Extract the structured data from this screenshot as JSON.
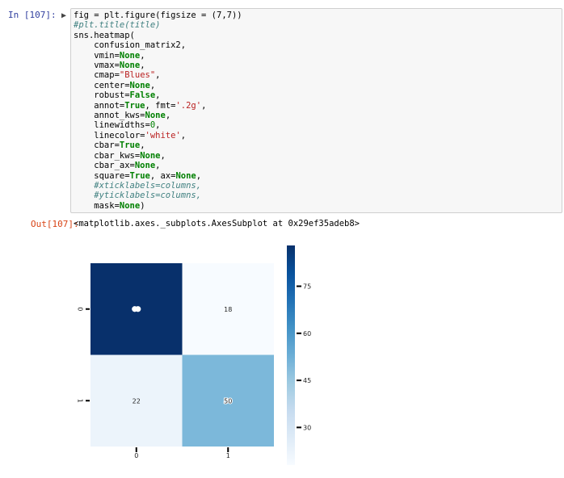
{
  "input_prompt": "In [107]:",
  "output_prompt": "Out[107]:",
  "code_lines": [
    [
      {
        "t": "fig = plt.figure(figsize = (7,7))",
        "c": ""
      }
    ],
    [
      {
        "t": "#plt.title(title)",
        "c": "cm"
      }
    ],
    [
      {
        "t": "sns.heatmap(",
        "c": ""
      }
    ],
    [
      {
        "t": "    confusion_matrix2,",
        "c": ""
      }
    ],
    [
      {
        "t": "    vmin=",
        "c": ""
      },
      {
        "t": "None",
        "c": "kw"
      },
      {
        "t": ",",
        "c": ""
      }
    ],
    [
      {
        "t": "    vmax=",
        "c": ""
      },
      {
        "t": "None",
        "c": "kw"
      },
      {
        "t": ",",
        "c": ""
      }
    ],
    [
      {
        "t": "    cmap=",
        "c": ""
      },
      {
        "t": "\"Blues\"",
        "c": "str"
      },
      {
        "t": ",",
        "c": ""
      }
    ],
    [
      {
        "t": "    center=",
        "c": ""
      },
      {
        "t": "None",
        "c": "kw"
      },
      {
        "t": ",",
        "c": ""
      }
    ],
    [
      {
        "t": "    robust=",
        "c": ""
      },
      {
        "t": "False",
        "c": "kw"
      },
      {
        "t": ",",
        "c": ""
      }
    ],
    [
      {
        "t": "    annot=",
        "c": ""
      },
      {
        "t": "True",
        "c": "kw"
      },
      {
        "t": ", fmt=",
        "c": ""
      },
      {
        "t": "'.2g'",
        "c": "str"
      },
      {
        "t": ",",
        "c": ""
      }
    ],
    [
      {
        "t": "    annot_kws=",
        "c": ""
      },
      {
        "t": "None",
        "c": "kw"
      },
      {
        "t": ",",
        "c": ""
      }
    ],
    [
      {
        "t": "    linewidths=",
        "c": ""
      },
      {
        "t": "0",
        "c": "num"
      },
      {
        "t": ",",
        "c": ""
      }
    ],
    [
      {
        "t": "    linecolor=",
        "c": ""
      },
      {
        "t": "'white'",
        "c": "str"
      },
      {
        "t": ",",
        "c": ""
      }
    ],
    [
      {
        "t": "    cbar=",
        "c": ""
      },
      {
        "t": "True",
        "c": "kw"
      },
      {
        "t": ",",
        "c": ""
      }
    ],
    [
      {
        "t": "    cbar_kws=",
        "c": ""
      },
      {
        "t": "None",
        "c": "kw"
      },
      {
        "t": ",",
        "c": ""
      }
    ],
    [
      {
        "t": "    cbar_ax=",
        "c": ""
      },
      {
        "t": "None",
        "c": "kw"
      },
      {
        "t": ",",
        "c": ""
      }
    ],
    [
      {
        "t": "    square=",
        "c": ""
      },
      {
        "t": "True",
        "c": "kw"
      },
      {
        "t": ", ax=",
        "c": ""
      },
      {
        "t": "None",
        "c": "kw"
      },
      {
        "t": ",",
        "c": ""
      }
    ],
    [
      {
        "t": "    #xticklabels=columns,",
        "c": "cm"
      }
    ],
    [
      {
        "t": "    #yticklabels=columns,",
        "c": "cm"
      }
    ],
    [
      {
        "t": "    mask=",
        "c": ""
      },
      {
        "t": "None",
        "c": "kw"
      },
      {
        "t": ")",
        "c": ""
      }
    ]
  ],
  "output_text": "<matplotlib.axes._subplots.AxesSubplot at 0x29ef35adeb8>",
  "chart_data": {
    "type": "heatmap",
    "x_labels": [
      "0",
      "1"
    ],
    "y_labels": [
      "0",
      "1"
    ],
    "values": [
      [
        88,
        18
      ],
      [
        22,
        50
      ]
    ],
    "annotations": [
      [
        "",
        "18"
      ],
      [
        "22",
        "50"
      ]
    ],
    "colormap": "Blues",
    "vmin": 18,
    "vmax": 88,
    "colorbar_ticks": [
      75,
      60,
      45,
      30
    ],
    "colors": {
      "high": "#08306b",
      "low": "#f7fbff"
    }
  }
}
